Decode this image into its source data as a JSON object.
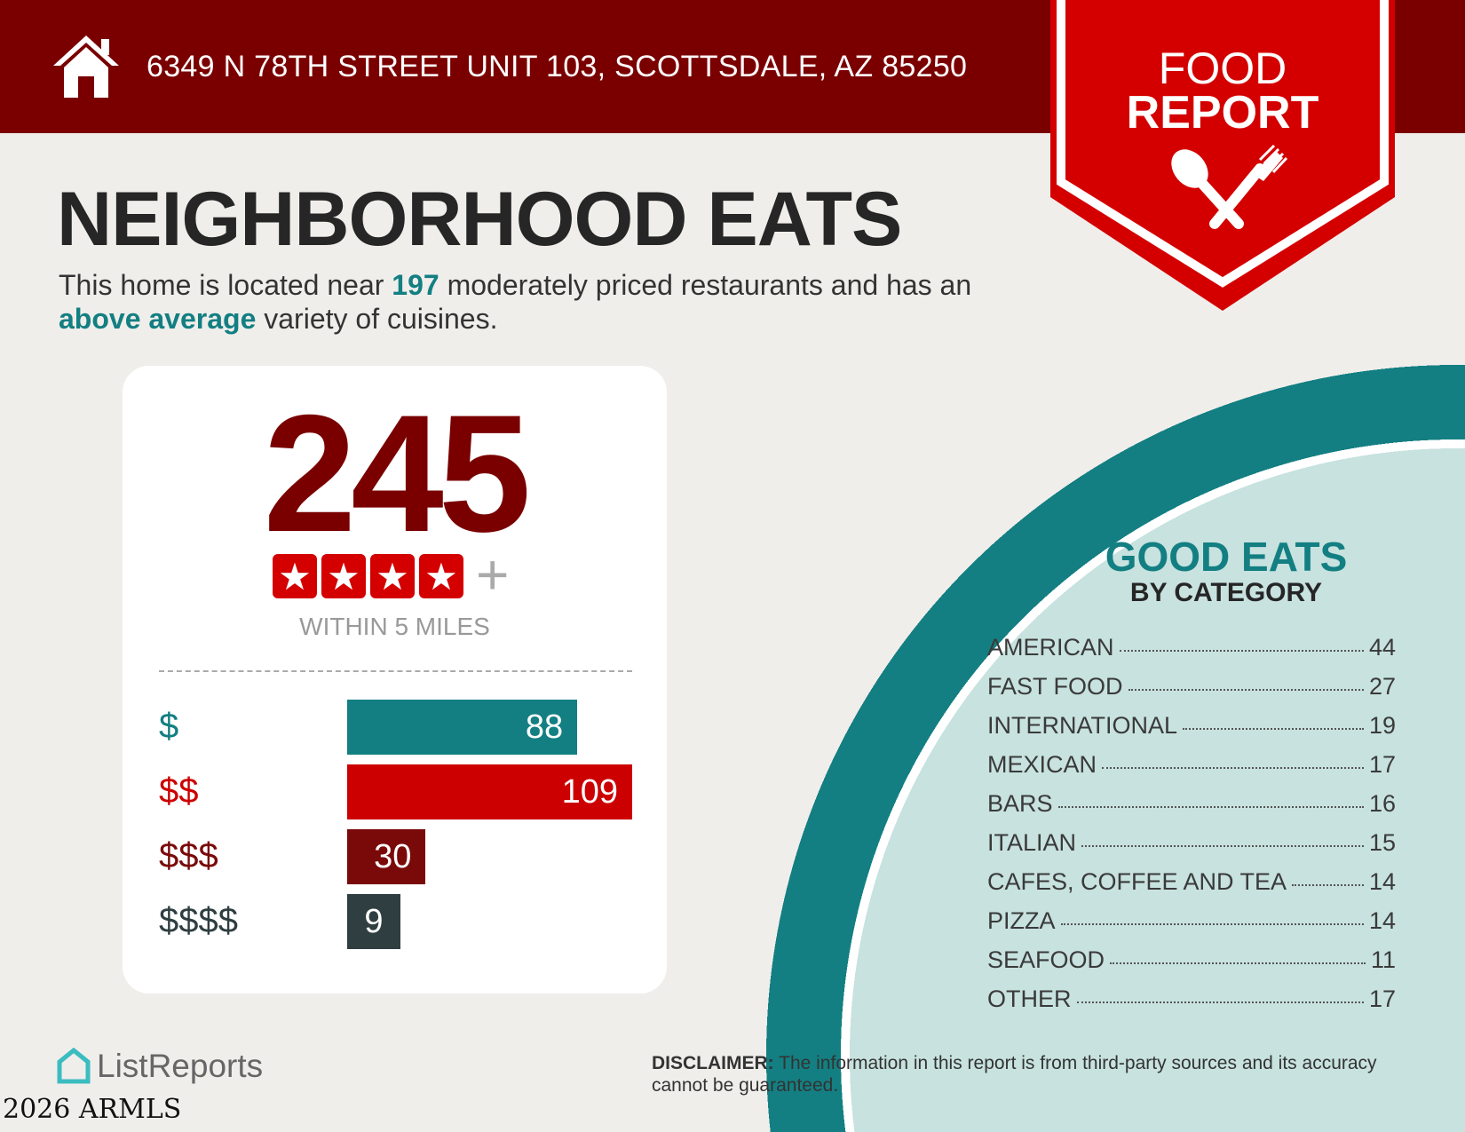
{
  "header": {
    "address": "6349 N 78TH STREET UNIT 103, SCOTTSDALE, AZ 85250",
    "icon": "house-icon"
  },
  "banner": {
    "line1": "FOOD",
    "line2": "REPORT",
    "icon": "spoon-fork-icon"
  },
  "title": "NEIGHBORHOOD EATS",
  "subtitle": {
    "pre": "This home is located near ",
    "count": "197",
    "mid": " moderately priced restaurants and has an ",
    "variety": "above average",
    "post": " variety of cuisines."
  },
  "card": {
    "total": "245",
    "stars": 4,
    "plus": "+",
    "within": "WITHIN 5 MILES",
    "price_levels": [
      {
        "label": "$",
        "value": 88,
        "color": "#137f82"
      },
      {
        "label": "$$",
        "value": 109,
        "color": "#cc0000"
      },
      {
        "label": "$$$",
        "value": 30,
        "color": "#7a0a0a"
      },
      {
        "label": "$$$$",
        "value": 9,
        "color": "#2f3e41"
      }
    ]
  },
  "good_eats": {
    "title": "GOOD EATS",
    "subtitle": "BY CATEGORY",
    "categories": [
      {
        "name": "AMERICAN",
        "count": "44"
      },
      {
        "name": "FAST FOOD",
        "count": "27"
      },
      {
        "name": "INTERNATIONAL",
        "count": "19"
      },
      {
        "name": "MEXICAN",
        "count": "17"
      },
      {
        "name": "BARS",
        "count": "16"
      },
      {
        "name": "ITALIAN",
        "count": "15"
      },
      {
        "name": "CAFES, COFFEE AND TEA",
        "count": "14"
      },
      {
        "name": "PIZZA",
        "count": "14"
      },
      {
        "name": "SEAFOOD",
        "count": "11"
      },
      {
        "name": "OTHER",
        "count": "17"
      }
    ]
  },
  "disclaimer": {
    "label": "DISCLAIMER:",
    "text": " The information in this report is from third-party sources and its accuracy cannot be guaranteed."
  },
  "logo": "ListReports",
  "watermark": "2026 ARMLS",
  "colors": {
    "header": "#7a0000",
    "banner": "#d40000",
    "teal": "#137f82",
    "light_teal": "#c7e2df"
  }
}
